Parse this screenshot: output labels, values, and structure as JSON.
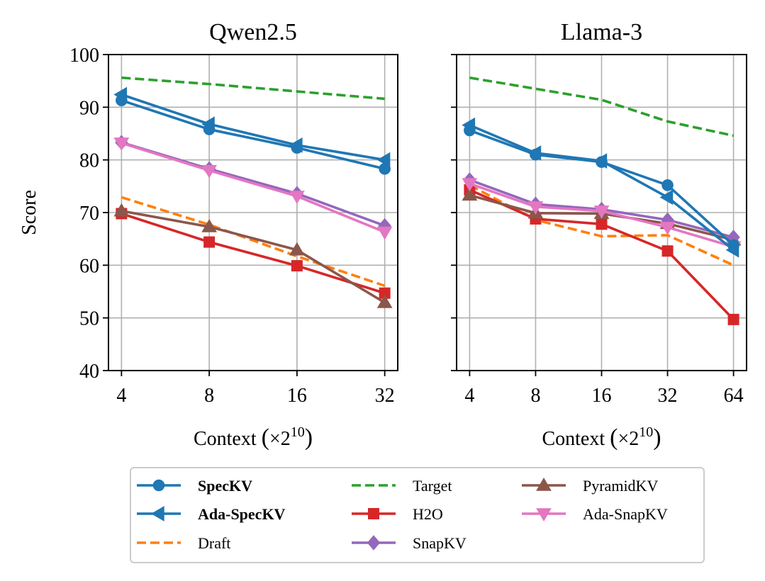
{
  "chart_data": [
    {
      "type": "line",
      "title": "Qwen2.5",
      "x": [
        "4",
        "8",
        "16",
        "32"
      ],
      "xlabel": "Context",
      "xlabel_unit_base": "×2",
      "xlabel_unit_exp": "10",
      "ylabel": "Score",
      "ylim": [
        40,
        100
      ],
      "yticks": [
        "40",
        "50",
        "60",
        "70",
        "80",
        "90",
        "100"
      ],
      "grid": true,
      "series": [
        {
          "name": "SpecKV",
          "values": [
            91.3,
            85.8,
            82.3,
            78.3
          ]
        },
        {
          "name": "Ada-SpecKV",
          "values": [
            92.4,
            86.8,
            82.8,
            80.0
          ]
        },
        {
          "name": "Draft",
          "values": [
            72.9,
            67.7,
            61.7,
            56.1
          ]
        },
        {
          "name": "Target",
          "values": [
            95.6,
            94.4,
            93.0,
            91.6
          ]
        },
        {
          "name": "H2O",
          "values": [
            69.8,
            64.4,
            59.9,
            54.7
          ]
        },
        {
          "name": "SnapKV",
          "values": [
            83.3,
            78.3,
            73.6,
            67.5
          ]
        },
        {
          "name": "PyramidKV",
          "values": [
            70.3,
            67.3,
            62.9,
            52.9
          ]
        },
        {
          "name": "Ada-SnapKV",
          "values": [
            83.2,
            78.0,
            73.1,
            66.3
          ]
        }
      ]
    },
    {
      "type": "line",
      "title": "Llama-3",
      "x": [
        "4",
        "8",
        "16",
        "32",
        "64"
      ],
      "xlabel": "Context",
      "xlabel_unit_base": "×2",
      "xlabel_unit_exp": "10",
      "ylabel": "",
      "ylim": [
        40,
        100
      ],
      "grid": true,
      "series": [
        {
          "name": "SpecKV",
          "values": [
            85.6,
            81.0,
            79.6,
            75.2,
            63.8
          ]
        },
        {
          "name": "Ada-SpecKV",
          "values": [
            86.6,
            81.3,
            79.8,
            72.9,
            62.9
          ]
        },
        {
          "name": "Draft",
          "values": [
            75.2,
            68.6,
            65.5,
            65.7,
            60.0
          ]
        },
        {
          "name": "Target",
          "values": [
            95.6,
            93.5,
            91.4,
            87.3,
            84.6
          ]
        },
        {
          "name": "H2O",
          "values": [
            74.3,
            68.8,
            67.8,
            62.7,
            49.7
          ]
        },
        {
          "name": "SnapKV",
          "values": [
            76.2,
            71.6,
            70.6,
            68.6,
            65.3
          ]
        },
        {
          "name": "PyramidKV",
          "values": [
            73.3,
            69.9,
            69.8,
            67.9,
            64.8
          ]
        },
        {
          "name": "Ada-SnapKV",
          "values": [
            75.5,
            71.1,
            70.3,
            67.2,
            63.5
          ]
        }
      ]
    }
  ],
  "legend": {
    "placement": "bottom-center",
    "entries": [
      {
        "name": "SpecKV",
        "color": "#1f77b4",
        "marker": "circle",
        "dash": false,
        "bold": true
      },
      {
        "name": "Ada-SpecKV",
        "color": "#1f77b4",
        "marker": "triangle-left",
        "dash": false,
        "bold": true
      },
      {
        "name": "Draft",
        "color": "#ff7f0e",
        "marker": "none",
        "dash": true,
        "bold": false
      },
      {
        "name": "Target",
        "color": "#2ca02c",
        "marker": "none",
        "dash": true,
        "bold": false
      },
      {
        "name": "H2O",
        "color": "#d62728",
        "marker": "square",
        "dash": false,
        "bold": false
      },
      {
        "name": "SnapKV",
        "color": "#9467bd",
        "marker": "diamond",
        "dash": false,
        "bold": false
      },
      {
        "name": "PyramidKV",
        "color": "#8c564b",
        "marker": "triangle-up",
        "dash": false,
        "bold": false
      },
      {
        "name": "Ada-SnapKV",
        "color": "#e377c2",
        "marker": "triangle-down",
        "dash": false,
        "bold": false
      }
    ]
  }
}
